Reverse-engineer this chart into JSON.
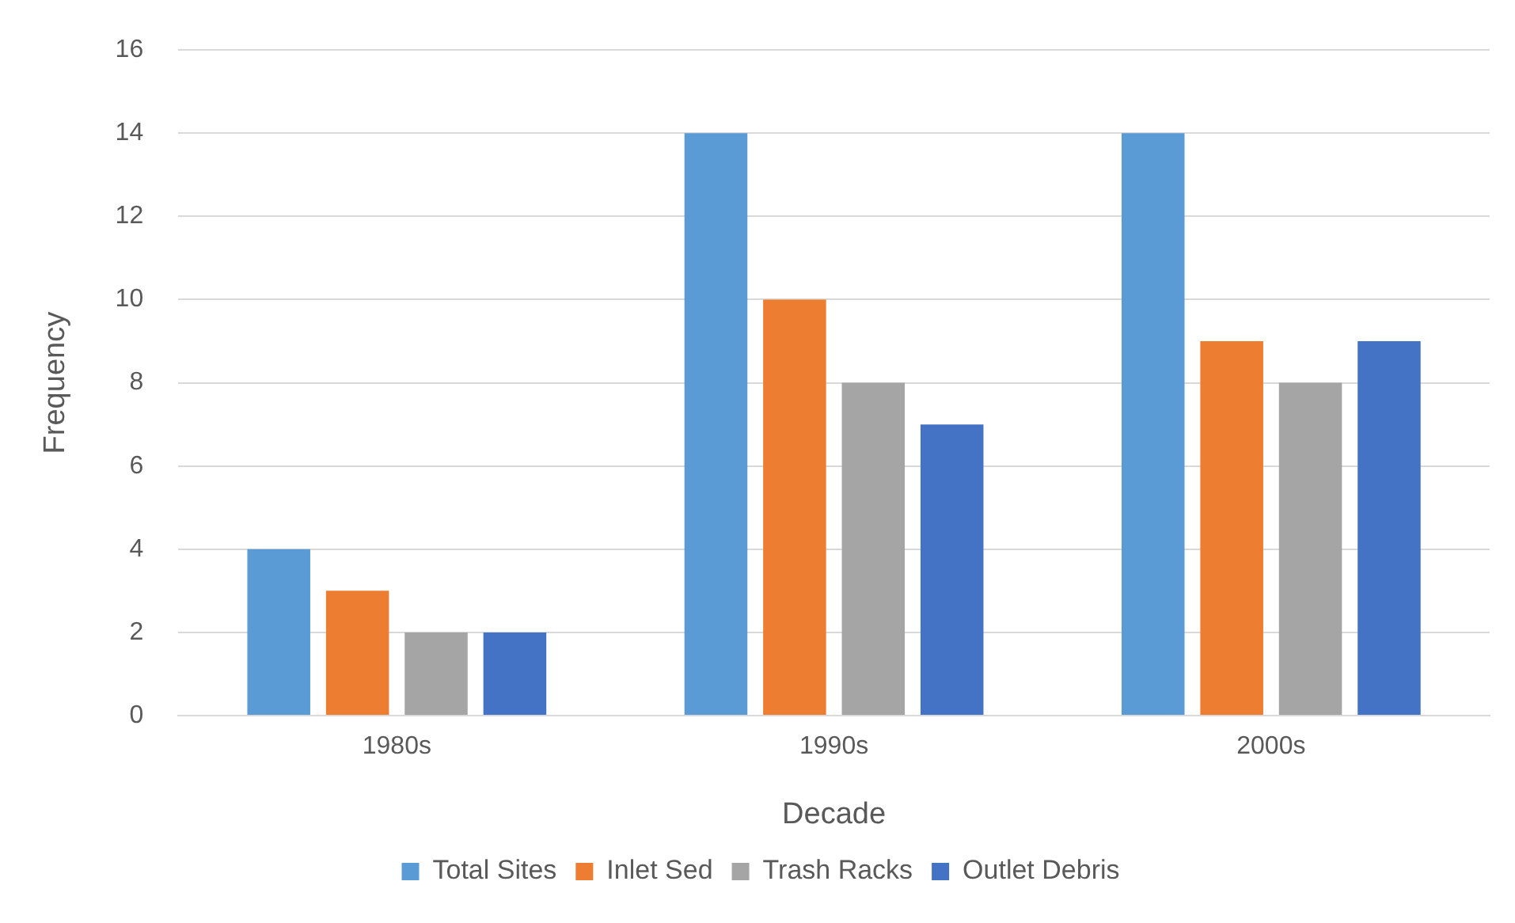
{
  "chart_data": {
    "type": "bar",
    "xlabel": "Decade",
    "ylabel": "Frequency",
    "categories": [
      "1980s",
      "1990s",
      "2000s"
    ],
    "series": [
      {
        "name": "Total Sites",
        "color": "#5b9bd5",
        "values": [
          4,
          14,
          14
        ]
      },
      {
        "name": "Inlet Sed",
        "color": "#ed7d31",
        "values": [
          3,
          10,
          9
        ]
      },
      {
        "name": "Trash Racks",
        "color": "#a5a5a5",
        "values": [
          2,
          8,
          8
        ]
      },
      {
        "name": "Outlet Debris",
        "color": "#4472c4",
        "values": [
          2,
          7,
          9
        ]
      }
    ],
    "ylim": [
      0,
      16
    ],
    "yticks": [
      0,
      2,
      4,
      6,
      8,
      10,
      12,
      14,
      16
    ],
    "grid": "y",
    "legend": "bottom"
  }
}
